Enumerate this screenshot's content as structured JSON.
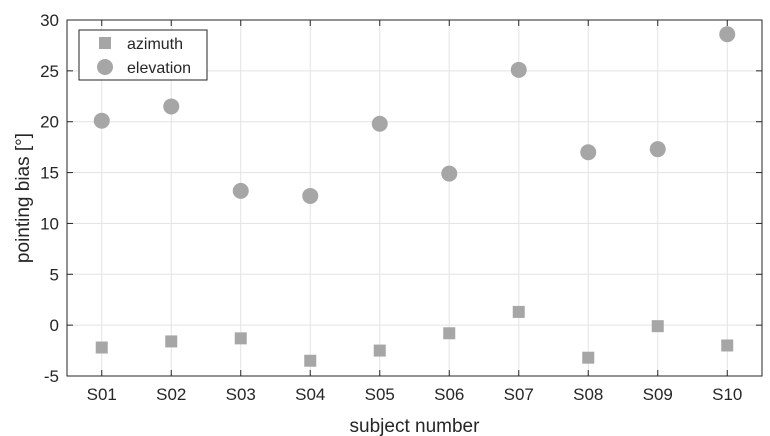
{
  "chart_data": {
    "type": "scatter",
    "categories": [
      "S01",
      "S02",
      "S03",
      "S04",
      "S05",
      "S06",
      "S07",
      "S08",
      "S09",
      "S10"
    ],
    "series": [
      {
        "name": "azimuth",
        "marker": "square",
        "color": "#a6a6a6",
        "values": [
          -2.2,
          -1.6,
          -1.3,
          -3.5,
          -2.5,
          -0.8,
          1.3,
          -3.2,
          -0.1,
          -2.0
        ]
      },
      {
        "name": "elevation",
        "marker": "circle",
        "color": "#a6a6a6",
        "values": [
          20.1,
          21.5,
          13.2,
          12.7,
          19.8,
          14.9,
          25.1,
          17.0,
          17.3,
          28.6
        ]
      }
    ],
    "xlabel": "subject number",
    "ylabel": "pointing bias [°]",
    "ylim": [
      -5,
      30
    ],
    "yticks": [
      "-5",
      "0",
      "5",
      "10",
      "15",
      "20",
      "25",
      "30"
    ],
    "grid": true,
    "legend_position": "top-left"
  }
}
